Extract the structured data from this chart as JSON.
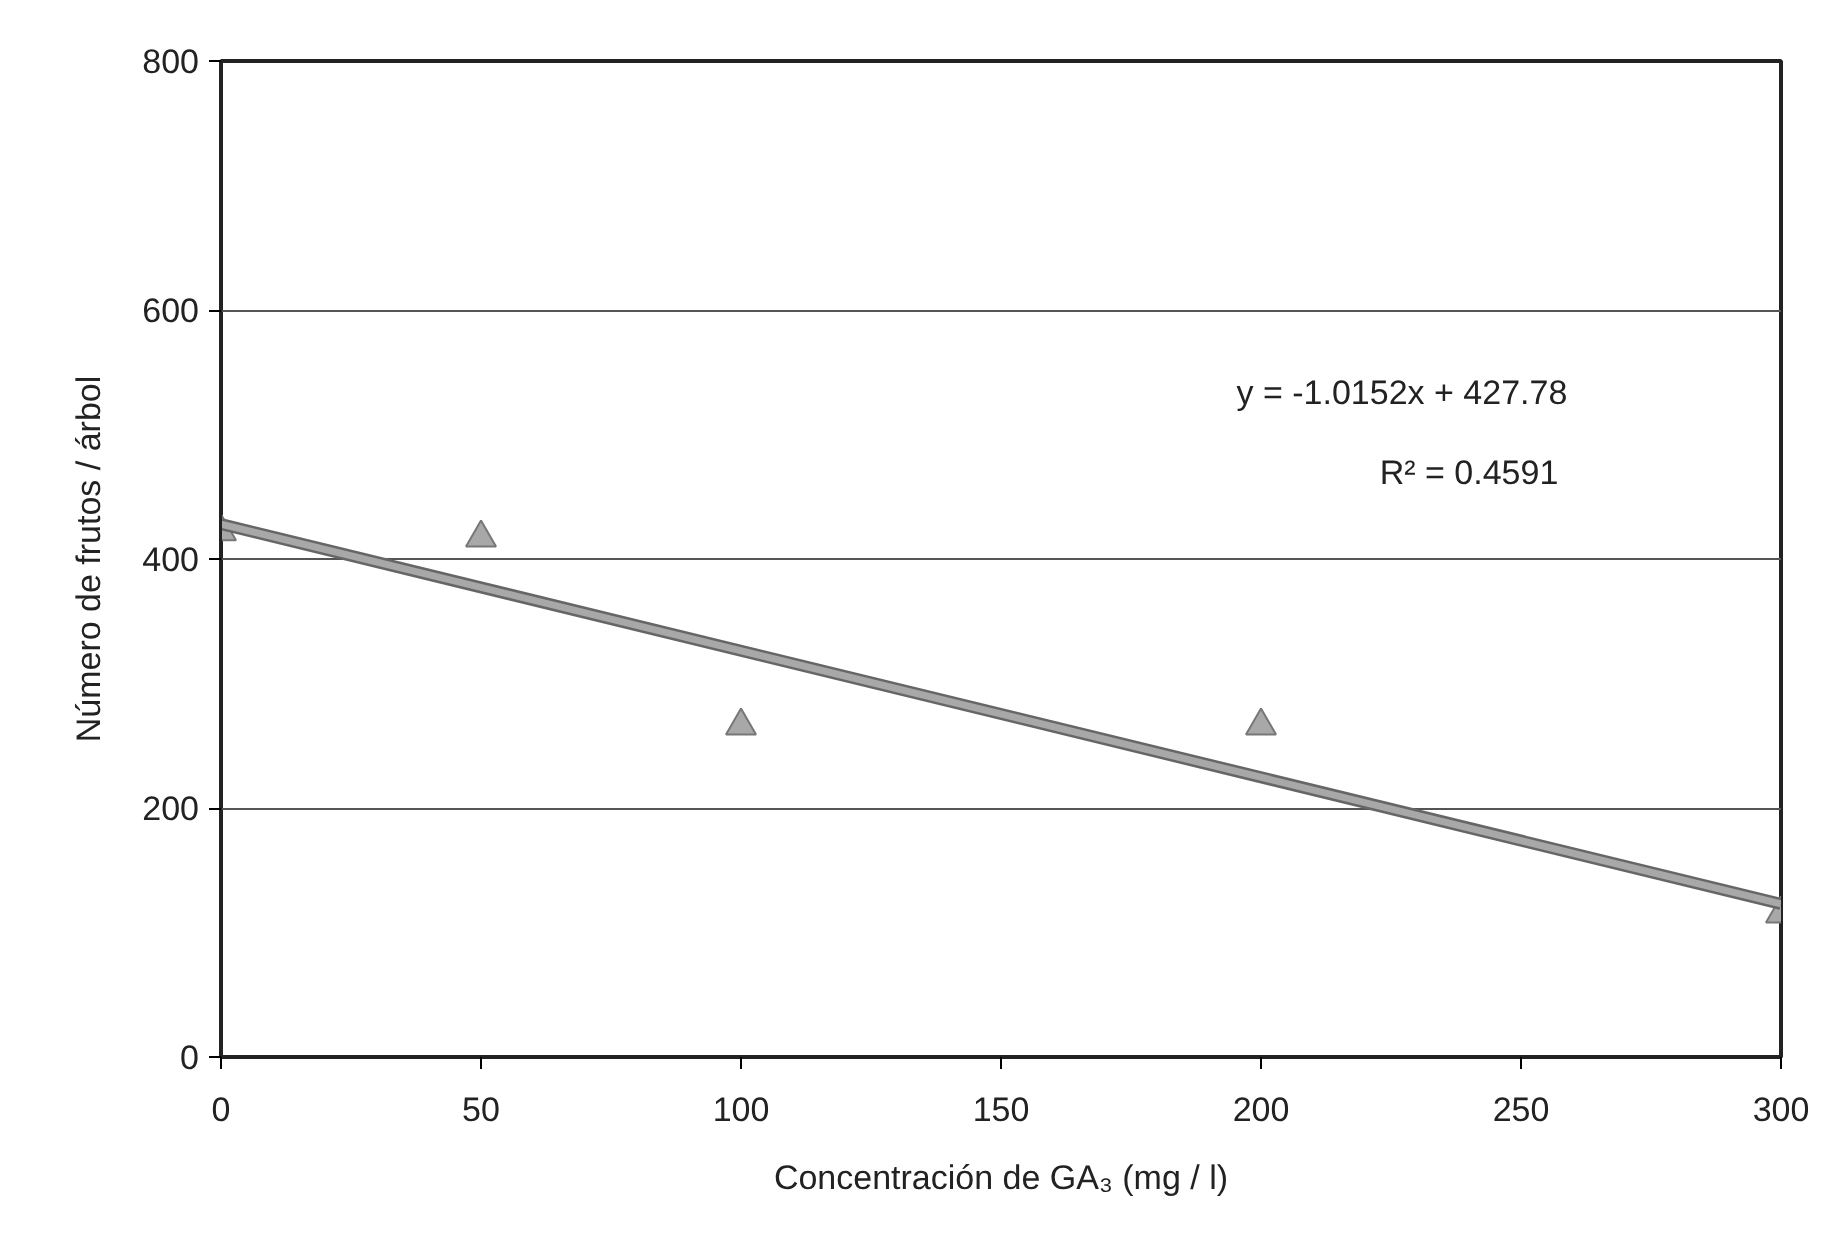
{
  "chart_data": {
    "type": "scatter",
    "xlabel": "Concentración de GA₃ (mg / l)",
    "ylabel": "Número de frutos / árbol",
    "x": [
      0,
      50,
      100,
      200,
      300
    ],
    "series": [
      {
        "color": "#a8a8a8",
        "values": [
          422,
          417,
          266,
          266,
          115
        ],
        "marker": "triangle"
      },
      {
        "type": "line",
        "color": "#a8a8a8",
        "x": [
          0,
          300
        ],
        "values": [
          428,
          123
        ],
        "marker": "none",
        "line_style": "solid"
      }
    ],
    "annotations": [
      "y = -1.0152x + 427.78",
      "R² = 0.4591"
    ],
    "xlim": [
      0,
      300
    ],
    "ylim": [
      0,
      800
    ],
    "xticks": [
      0,
      50,
      100,
      150,
      200,
      250,
      300
    ],
    "yticks": [
      0,
      200,
      400,
      600,
      800
    ],
    "grid": "y"
  }
}
